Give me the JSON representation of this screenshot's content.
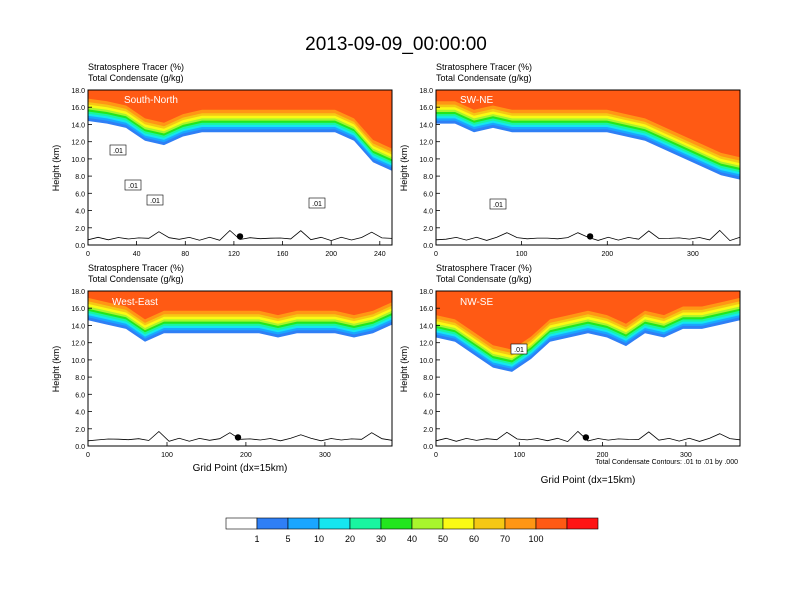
{
  "title": "2013-09-09_00:00:00",
  "contour_note": "Total Condensate Contours: .01 to .01 by .000",
  "colorbar": {
    "labels": [
      "1",
      "5",
      "10",
      "20",
      "30",
      "40",
      "50",
      "60",
      "70",
      "100"
    ],
    "colors": [
      "#ffffff",
      "#2f7ff5",
      "#1aa6ff",
      "#15e6f0",
      "#19f5a0",
      "#23e61e",
      "#a8f52d",
      "#fafa14",
      "#f5c814",
      "#ff9614",
      "#ff5a14",
      "#ff1414"
    ]
  },
  "colors": {
    "contour": "#000000",
    "marker": "#000000"
  },
  "panels": [
    {
      "tracer_label": "Stratosphere Tracer   (%)",
      "condensate_label": "Total Condensate   (g/kg)",
      "cross_section": "South-North",
      "ylabel": "Height (km)",
      "xlabel": "",
      "xticks": [
        "0",
        "40",
        "80",
        "120",
        "160",
        "200",
        "240"
      ],
      "yticks": [
        "0.0",
        "2.0",
        "4.0",
        "6.0",
        "8.0",
        "10.0",
        "12.0",
        "14.0",
        "16.0",
        "18.0"
      ],
      "contour_labels": [
        ".01",
        ".01",
        ".01",
        ".01"
      ],
      "chart_data": {
        "type": "heatmap",
        "x_range": [
          0,
          250
        ],
        "y_range": [
          0,
          18
        ],
        "tropopause_height_km": [
          14.8,
          14.5,
          14.0,
          12.5,
          12.0,
          13.0,
          13.5,
          13.5,
          13.5,
          13.5,
          13.5,
          13.5,
          13.5,
          13.5,
          12.5,
          10.0,
          9.0
        ],
        "marker_x": 125,
        "grid": false
      }
    },
    {
      "tracer_label": "Stratosphere Tracer   (%)",
      "condensate_label": "Total Condensate   (g/kg)",
      "cross_section": "SW-NE",
      "ylabel": "Height (km)",
      "xlabel": "",
      "xticks": [
        "0",
        "100",
        "200",
        "300"
      ],
      "yticks": [
        "0.0",
        "2.0",
        "4.0",
        "6.0",
        "8.0",
        "10.0",
        "12.0",
        "14.0",
        "16.0",
        "18.0"
      ],
      "contour_labels": [
        ".01"
      ],
      "chart_data": {
        "type": "heatmap",
        "x_range": [
          0,
          355
        ],
        "y_range": [
          0,
          18
        ],
        "tropopause_height_km": [
          14.5,
          14.5,
          13.5,
          14.0,
          13.5,
          13.5,
          13.5,
          13.5,
          13.5,
          13.5,
          13.0,
          12.5,
          11.5,
          10.5,
          9.5,
          8.5,
          8.0
        ],
        "marker_x": 180,
        "grid": false
      }
    },
    {
      "tracer_label": "Stratosphere Tracer   (%)",
      "condensate_label": "Total Condensate   (g/kg)",
      "cross_section": "West-East",
      "ylabel": "Height (km)",
      "xlabel": "Grid Point (dx=15km)",
      "xticks": [
        "0",
        "100",
        "200",
        "300"
      ],
      "yticks": [
        "0.0",
        "2.0",
        "4.0",
        "6.0",
        "8.0",
        "10.0",
        "12.0",
        "14.0",
        "16.0",
        "18.0"
      ],
      "contour_labels": [],
      "chart_data": {
        "type": "heatmap",
        "x_range": [
          0,
          385
        ],
        "y_range": [
          0,
          18
        ],
        "tropopause_height_km": [
          15.0,
          14.5,
          14.0,
          12.5,
          13.5,
          13.5,
          13.5,
          13.5,
          13.5,
          13.5,
          13.0,
          13.5,
          13.5,
          13.5,
          13.0,
          13.5,
          14.5
        ],
        "marker_x": 190,
        "grid": false
      }
    },
    {
      "tracer_label": "Stratosphere Tracer   (%)",
      "condensate_label": "Total Condensate   (g/kg)",
      "cross_section": "NW-SE",
      "ylabel": "Height (km)",
      "xlabel": "Grid Point (dx=15km)",
      "xticks": [
        "0",
        "100",
        "200",
        "300"
      ],
      "yticks": [
        "0.0",
        "2.0",
        "4.0",
        "6.0",
        "8.0",
        "10.0",
        "12.0",
        "14.0",
        "16.0",
        "18.0"
      ],
      "contour_labels": [
        ".01"
      ],
      "chart_data": {
        "type": "heatmap",
        "x_range": [
          0,
          365
        ],
        "y_range": [
          0,
          18
        ],
        "tropopause_height_km": [
          13.0,
          12.5,
          11.0,
          9.5,
          9.0,
          10.5,
          12.5,
          13.0,
          13.5,
          13.0,
          12.0,
          13.5,
          13.0,
          14.0,
          14.0,
          14.5,
          15.0
        ],
        "marker_x": 180,
        "grid": false
      }
    }
  ]
}
